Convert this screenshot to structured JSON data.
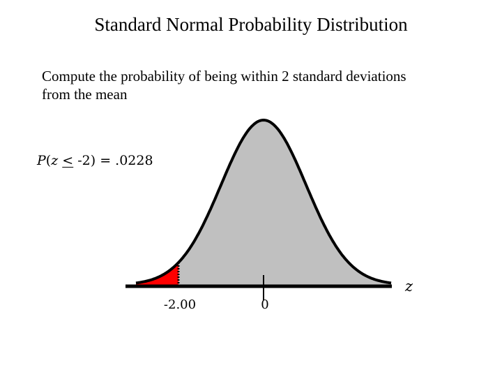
{
  "slide": {
    "title": "Standard Normal Probability Distribution",
    "subtitle_line1": "Compute the probability of being within 2 standard deviations",
    "subtitle_line2": "from the mean",
    "probability": {
      "p": "P",
      "open": "(",
      "z": "z",
      "le": "<",
      "rest": " -2) = .0228"
    }
  },
  "chart_data": {
    "type": "area",
    "distribution": "standard normal",
    "x_axis_label": "z",
    "tick_labels": [
      "-2.00",
      "0"
    ],
    "ticks": [
      -2.0,
      0.0
    ],
    "shaded_region": {
      "upper": -2.0,
      "probability": 0.0228
    },
    "xlim": [
      -3.0,
      3.0
    ],
    "colors": {
      "tail": "#ff0000",
      "body": "#c0c0c0",
      "outline": "#000000"
    }
  }
}
